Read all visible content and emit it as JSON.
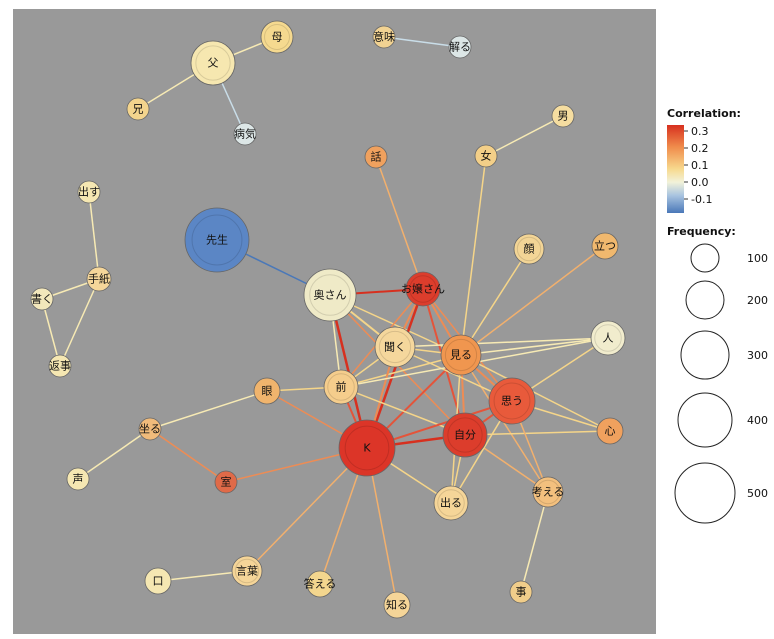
{
  "legend": {
    "correlation_title": "Correlation:",
    "correlation_ticks": [
      "0.3",
      "0.2",
      "0.1",
      "0.0",
      "-0.1"
    ],
    "frequency_title": "Frequency:",
    "frequency_ticks": [
      "100",
      "200",
      "300",
      "400",
      "500"
    ]
  },
  "colors": {
    "panel_bg": "#999999",
    "scale_high": "#d7301f",
    "scale_mid_high": "#f08c4c",
    "scale_mid": "#f7d98e",
    "scale_zero": "#f2f2d9",
    "scale_low": "#5b86c5"
  },
  "nodes": [
    {
      "id": "父",
      "label": "父"
    },
    {
      "id": "母",
      "label": "母"
    },
    {
      "id": "兄",
      "label": "兄"
    },
    {
      "id": "病気",
      "label": "病気"
    },
    {
      "id": "意味",
      "label": "意味"
    },
    {
      "id": "解る",
      "label": "解る"
    },
    {
      "id": "男",
      "label": "男"
    },
    {
      "id": "話",
      "label": "話"
    },
    {
      "id": "女",
      "label": "女"
    },
    {
      "id": "出す",
      "label": "出す"
    },
    {
      "id": "手紙",
      "label": "手紙"
    },
    {
      "id": "書く",
      "label": "書く"
    },
    {
      "id": "返事",
      "label": "返事"
    },
    {
      "id": "先生",
      "label": "先生"
    },
    {
      "id": "奥さん",
      "label": "奥さん"
    },
    {
      "id": "お嬢さん",
      "label": "お嬢さん"
    },
    {
      "id": "顔",
      "label": "顔"
    },
    {
      "id": "立つ",
      "label": "立つ"
    },
    {
      "id": "人",
      "label": "人"
    },
    {
      "id": "聞く",
      "label": "聞く"
    },
    {
      "id": "見る",
      "label": "見る"
    },
    {
      "id": "前",
      "label": "前"
    },
    {
      "id": "眼",
      "label": "眼"
    },
    {
      "id": "思う",
      "label": "思う"
    },
    {
      "id": "坐る",
      "label": "坐る"
    },
    {
      "id": "K",
      "label": "K"
    },
    {
      "id": "自分",
      "label": "自分"
    },
    {
      "id": "心",
      "label": "心"
    },
    {
      "id": "声",
      "label": "声"
    },
    {
      "id": "室",
      "label": "室"
    },
    {
      "id": "出る",
      "label": "出る"
    },
    {
      "id": "考える",
      "label": "考える"
    },
    {
      "id": "口",
      "label": "口"
    },
    {
      "id": "言葉",
      "label": "言葉"
    },
    {
      "id": "答える",
      "label": "答える"
    },
    {
      "id": "知る",
      "label": "知る"
    },
    {
      "id": "事",
      "label": "事"
    }
  ]
}
